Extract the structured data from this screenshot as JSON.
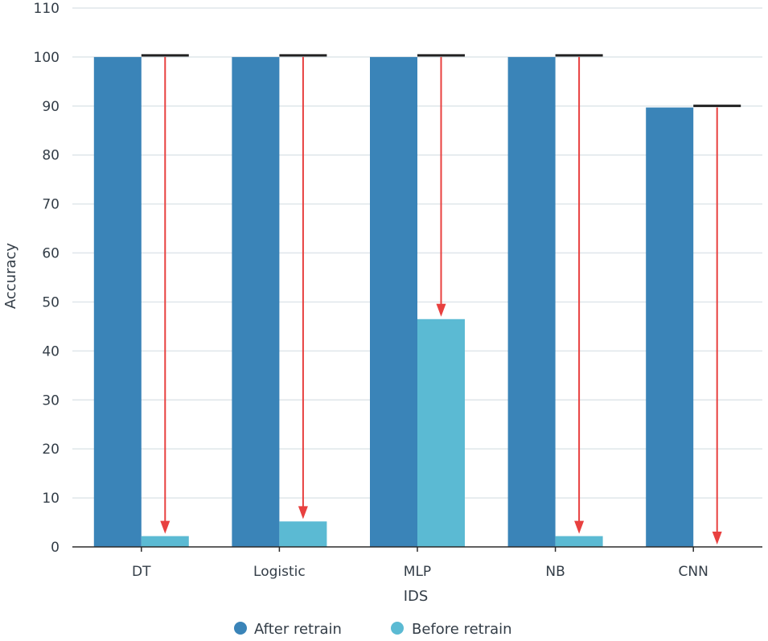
{
  "chart_data": {
    "type": "bar",
    "title": "",
    "xlabel": "IDS",
    "ylabel": "Accuracy",
    "ylim": [
      0,
      110
    ],
    "yticks": [
      "0",
      "10",
      "20",
      "30",
      "40",
      "50",
      "60",
      "70",
      "80",
      "90",
      "100",
      "110"
    ],
    "grid": true,
    "legend_position": "bottom-center",
    "categories": [
      "DT",
      "Logistic",
      "MLP",
      "NB",
      "CNN"
    ],
    "series": [
      {
        "name": "After retrain",
        "color": "#3a84b8",
        "values": [
          100,
          100,
          100,
          100,
          89.7
        ]
      },
      {
        "name": "Before retrain",
        "color": "#5bbad3",
        "values": [
          2.2,
          5.2,
          46.5,
          2.2,
          0
        ]
      }
    ],
    "annotations": {
      "reference_line_color": "#222222",
      "arrow_color": "#e8403f",
      "description": "arrows from after-retrain level down to before-retrain level"
    }
  }
}
